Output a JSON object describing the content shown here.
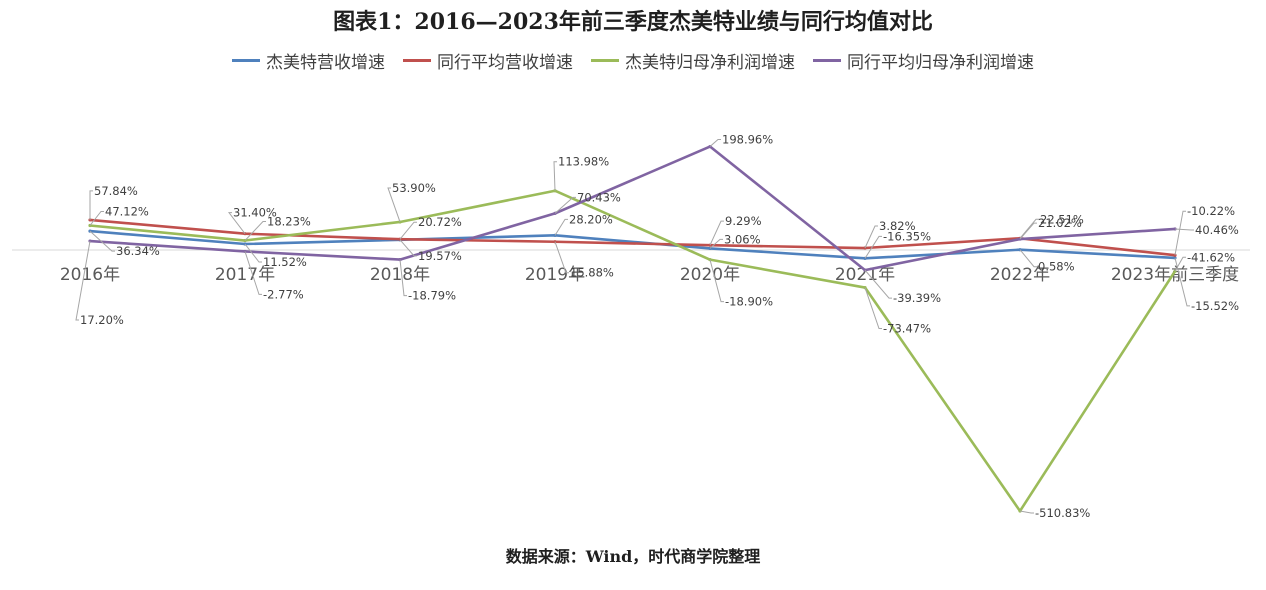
{
  "title": "图表1：2016—2023年前三季度杰美特业绩与同行均值对比",
  "source": "数据来源：Wind，时代商学院整理",
  "chart_data": {
    "type": "line",
    "categories": [
      "2016年",
      "2017年",
      "2018年",
      "2019年",
      "2020年",
      "2021年",
      "2022年",
      "2023年前三季度"
    ],
    "unit": "%",
    "legend_position": "top",
    "grid": false,
    "series": [
      {
        "name": "杰美特营收增速",
        "color": "#4f81bd",
        "values": [
          36.34,
          11.52,
          19.57,
          28.2,
          3.06,
          -16.35,
          0.58,
          -15.52
        ],
        "labels": [
          "36.34%",
          "11.52%",
          "19.57%",
          "28.20%",
          "3.06%",
          "-16.35%",
          "0.58%",
          "-15.52%"
        ]
      },
      {
        "name": "同行平均营收增速",
        "color": "#c0504d",
        "values": [
          57.84,
          31.4,
          20.72,
          15.88,
          9.29,
          3.82,
          22.51,
          -10.22
        ],
        "labels": [
          "57.84%",
          "31.40%",
          "20.72%",
          "15.88%",
          "9.29%",
          "3.82%",
          "22.51%",
          "-10.22%"
        ]
      },
      {
        "name": "杰美特归母净利润增速",
        "color": "#9bbb59",
        "values": [
          47.12,
          18.23,
          53.9,
          113.98,
          -18.9,
          -73.47,
          -510.83,
          -41.62
        ],
        "labels": [
          "47.12%",
          "18.23%",
          "53.90%",
          "113.98%",
          "-18.90%",
          "-73.47%",
          "-510.83%",
          "-41.62%"
        ]
      },
      {
        "name": "同行平均归母净利润增速",
        "color": "#8064a2",
        "values": [
          17.2,
          -2.77,
          -18.79,
          70.43,
          198.96,
          -39.39,
          21.02,
          40.46
        ],
        "labels": [
          "17.20%",
          "-2.77%",
          "-18.79%",
          "70.43%",
          "198.96%",
          "-39.39%",
          "21.02%",
          "40.46%"
        ]
      }
    ]
  }
}
